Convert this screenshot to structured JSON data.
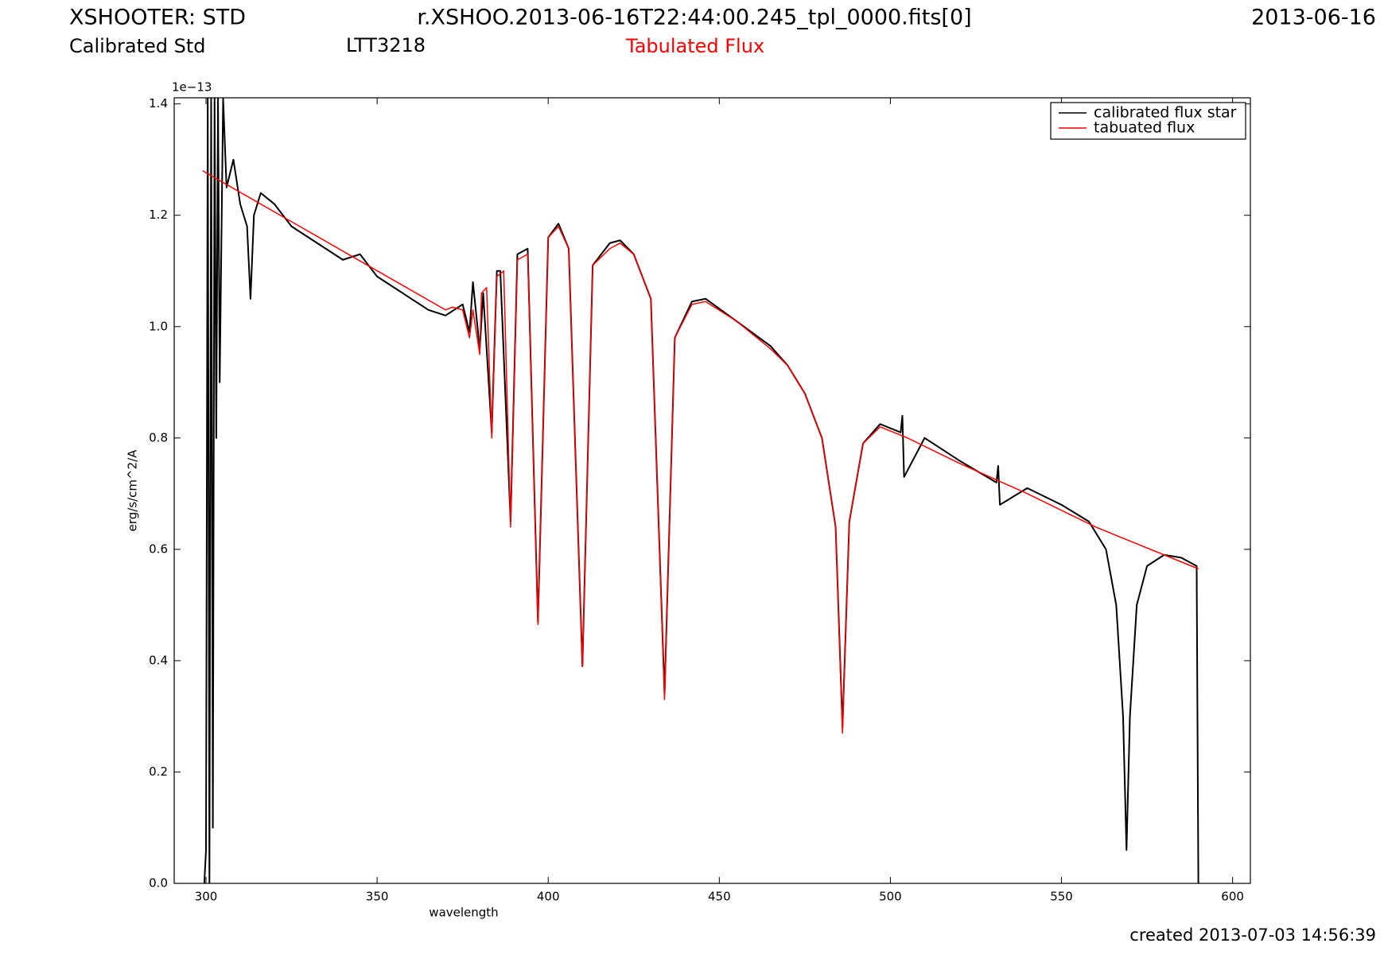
{
  "chart_data": {
    "type": "line",
    "title": "XSHOOTER: STD",
    "file": "r.XSHOO.2013-06-16T22:44:00.245_tpl_0000.fits[0]",
    "date": "2013-06-16",
    "subtitle": "Calibrated Std",
    "object": "LTT3218",
    "annotation": "Tabulated Flux",
    "annotation_color": "#ff0000",
    "footer": "created 2013-07-03 14:56:39",
    "xlabel": "wavelength",
    "ylabel": "erg/s/cm^2/A",
    "y_offset_label": "1e−13",
    "xlim": [
      290.7,
      605.2
    ],
    "ylim": [
      0,
      1.411
    ],
    "xticks": [
      300,
      350,
      400,
      450,
      500,
      550,
      600
    ],
    "yticks": [
      {
        "value": 0,
        "label": "0.0"
      },
      0.2,
      0.4,
      0.6,
      0.8,
      {
        "value": 1,
        "label": "1.0"
      },
      1.2,
      1.4
    ],
    "legend": "upper right",
    "series": [
      {
        "name": "calibrated flux star",
        "color": "#000000",
        "x": [
          299.5,
          300,
          300.5,
          301,
          301.5,
          302,
          302.5,
          303,
          303.5,
          304,
          305,
          306,
          308,
          310,
          312,
          313,
          314,
          316,
          320,
          325,
          330,
          335,
          340,
          345,
          350,
          355,
          360,
          365,
          370,
          375,
          377,
          378,
          380,
          381,
          383.5,
          385,
          386,
          389,
          391,
          394,
          397,
          400,
          403,
          406,
          410,
          413,
          418,
          421,
          425,
          430,
          434,
          437,
          442,
          446,
          455,
          465,
          470,
          475,
          480,
          484,
          486,
          488,
          492,
          497,
          503,
          503.5,
          504,
          510,
          520,
          531,
          531.5,
          532,
          540,
          550,
          558,
          560,
          563,
          566,
          568,
          569,
          570,
          572,
          575,
          580,
          585,
          589.5,
          590
        ],
        "values": [
          0.0,
          0.06,
          1.41,
          0.0,
          1.41,
          0.1,
          1.41,
          0.8,
          1.41,
          0.9,
          1.41,
          1.25,
          1.3,
          1.22,
          1.18,
          1.05,
          1.2,
          1.24,
          1.22,
          1.18,
          1.16,
          1.14,
          1.12,
          1.13,
          1.09,
          1.07,
          1.05,
          1.03,
          1.02,
          1.04,
          0.99,
          1.08,
          0.96,
          1.06,
          0.81,
          1.1,
          1.1,
          0.65,
          1.13,
          1.14,
          0.47,
          1.16,
          1.185,
          1.14,
          0.39,
          1.11,
          1.15,
          1.155,
          1.13,
          1.05,
          0.34,
          0.98,
          1.045,
          1.05,
          1.01,
          0.965,
          0.93,
          0.88,
          0.8,
          0.64,
          0.28,
          0.65,
          0.79,
          0.825,
          0.81,
          0.84,
          0.73,
          0.8,
          0.76,
          0.72,
          0.75,
          0.68,
          0.71,
          0.68,
          0.65,
          0.63,
          0.6,
          0.5,
          0.3,
          0.06,
          0.3,
          0.5,
          0.57,
          0.59,
          0.585,
          0.57,
          0.0
        ]
      },
      {
        "name": "tabuated flux",
        "color": "#ff0000",
        "x": [
          299,
          370,
          372,
          375,
          377,
          378,
          380,
          380.5,
          382,
          383.5,
          385,
          387,
          389,
          391,
          394,
          397,
          400,
          403,
          406,
          410,
          413,
          418,
          421,
          425,
          430,
          434,
          437,
          442,
          446,
          455,
          465,
          470,
          475,
          480,
          484,
          486,
          488,
          492,
          497,
          505,
          520,
          540,
          560,
          590
        ],
        "values": [
          1.28,
          1.03,
          1.035,
          1.03,
          0.98,
          1.03,
          0.95,
          1.06,
          1.07,
          0.8,
          1.09,
          1.1,
          0.64,
          1.12,
          1.13,
          0.465,
          1.16,
          1.18,
          1.14,
          0.39,
          1.11,
          1.14,
          1.15,
          1.13,
          1.05,
          0.33,
          0.98,
          1.04,
          1.045,
          1.01,
          0.96,
          0.93,
          0.88,
          0.8,
          0.64,
          0.27,
          0.65,
          0.79,
          0.82,
          0.8,
          0.755,
          0.7,
          0.64,
          0.565
        ]
      }
    ]
  }
}
